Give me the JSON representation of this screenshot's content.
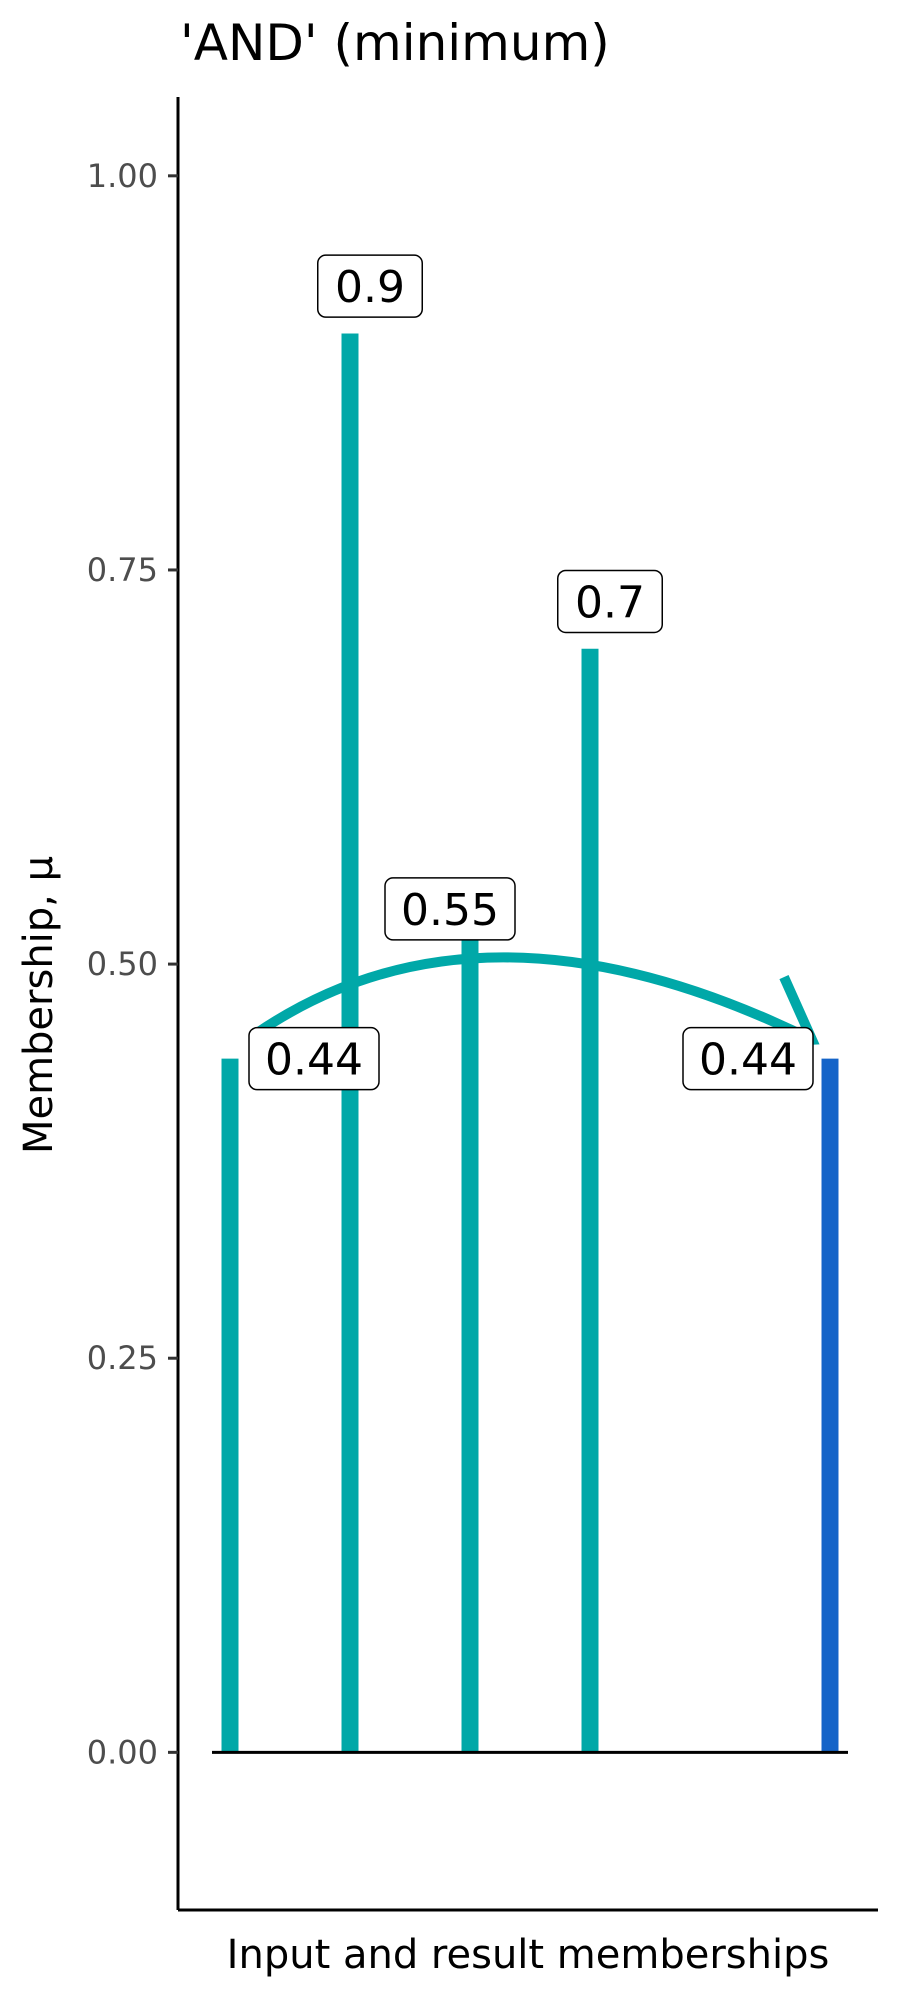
{
  "chart_data": {
    "type": "bar",
    "title": "'AND' (minimum)",
    "xlabel": "Input and result memberships",
    "ylabel": "Membership, μ",
    "ylim": [
      -0.1,
      1.05
    ],
    "yticks": [
      0.0,
      0.25,
      0.5,
      0.75,
      1.0
    ],
    "ytick_labels": [
      "0.00",
      "0.25",
      "0.50",
      "0.75",
      "1.00"
    ],
    "x": [
      1,
      2,
      3,
      4,
      6
    ],
    "values": [
      0.44,
      0.9,
      0.55,
      0.7,
      0.44
    ],
    "labels": [
      "0.44",
      "0.9",
      "0.55",
      "0.7",
      "0.44"
    ],
    "colors": [
      "#00a8a8",
      "#00a8a8",
      "#00a8a8",
      "#00a8a8",
      "#1464c8"
    ],
    "baseline": 0.0,
    "arrow": {
      "from_x": 1.2,
      "to_x": 5.85,
      "color": "#00a8a8"
    },
    "grid": false,
    "legend": "none"
  }
}
